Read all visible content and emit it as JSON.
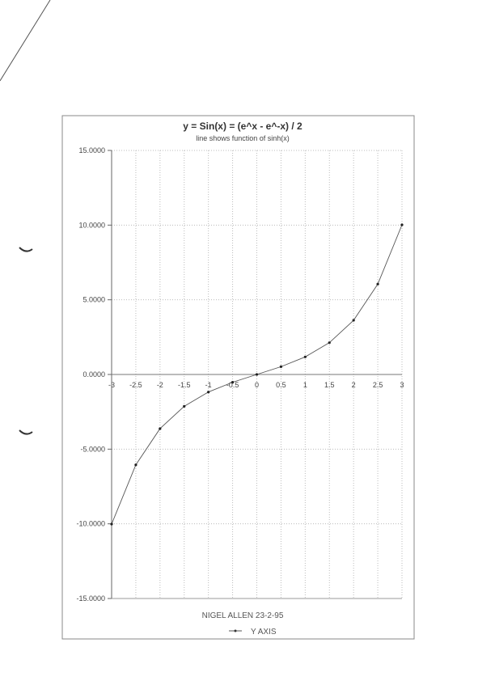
{
  "chart_data": {
    "type": "line",
    "title": "y = Sin(x) = (e^x - e^-x) / 2",
    "subtitle": "line shows function of sinh(x)",
    "xlabel": "",
    "ylabel": "",
    "xlim": [
      -3,
      3
    ],
    "ylim": [
      -15,
      15
    ],
    "x_ticks": [
      "-3",
      "-2.5",
      "-2",
      "-1.5",
      "-1",
      "-0.5",
      "0",
      "0.5",
      "1",
      "1.5",
      "2",
      "2.5",
      "3"
    ],
    "y_ticks": [
      "15.0000",
      "10.0000",
      "5.0000",
      "0.0000",
      "-5.0000",
      "-10.0000",
      "-15.0000"
    ],
    "grid": true,
    "legend_position": "bottom",
    "footer": "NIGEL ALLEN 23-2-95",
    "series": [
      {
        "name": "Y AXIS",
        "x": [
          -3,
          -2.5,
          -2,
          -1.5,
          -1,
          -0.5,
          0,
          0.5,
          1,
          1.5,
          2,
          2.5,
          3
        ],
        "y": [
          -10.018,
          -6.05,
          -3.627,
          -2.129,
          -1.175,
          -0.521,
          0,
          0.521,
          1.175,
          2.129,
          3.627,
          6.05,
          10.018
        ],
        "color": "#555555"
      }
    ]
  }
}
